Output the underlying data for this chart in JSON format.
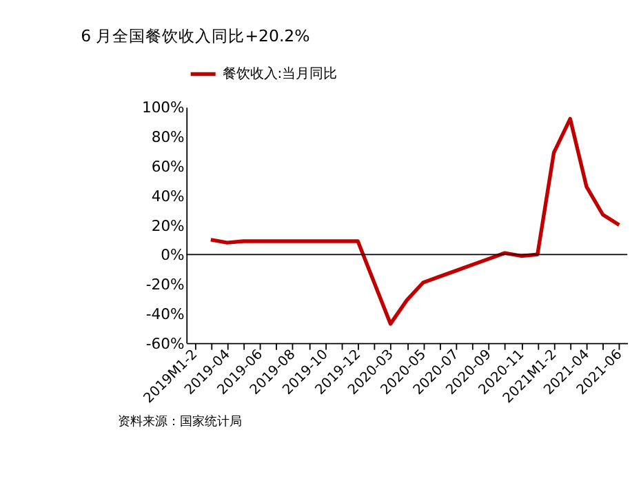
{
  "chart_data": {
    "type": "line",
    "title": "6 月全国餐饮收入同比+20.2%",
    "annotations": [
      "资料来源：国家统计局"
    ],
    "categories": [
      "2019M1-2",
      null,
      "2019-04",
      null,
      "2019-06",
      null,
      "2019-08",
      null,
      "2019-10",
      null,
      "2019-12",
      null,
      "2020-03",
      null,
      "2020-05",
      null,
      "2020-07",
      null,
      "2020-09",
      null,
      "2020-11",
      null,
      "2021M1-2",
      null,
      "2021-04",
      null,
      "2021-06"
    ],
    "series": [
      {
        "name": "餐饮收入:当月同比",
        "color": "#c00000",
        "values": [
          null,
          10,
          8,
          9,
          9,
          9,
          9,
          9,
          9,
          9,
          9,
          null,
          -47,
          -31,
          -19,
          -15,
          -11,
          -7,
          -3,
          1,
          -1,
          0,
          69,
          92,
          46,
          27,
          20
        ]
      }
    ],
    "ref_lines": [
      {
        "axis": "y",
        "value": 0,
        "color": "#000000"
      }
    ],
    "ylim": [
      -60,
      100
    ],
    "yticks": [
      {
        "value": -60,
        "label": "-60%"
      },
      {
        "value": -40,
        "label": "-40%"
      },
      {
        "value": -20,
        "label": "-20%"
      },
      {
        "value": 0,
        "label": "0%"
      },
      {
        "value": 20,
        "label": "20%"
      },
      {
        "value": 40,
        "label": "40%"
      },
      {
        "value": 60,
        "label": "60%"
      },
      {
        "value": 80,
        "label": "80%"
      },
      {
        "value": 100,
        "label": "100%"
      }
    ],
    "grid": false,
    "legend": "top",
    "marker": "none",
    "line_style": "solid"
  }
}
